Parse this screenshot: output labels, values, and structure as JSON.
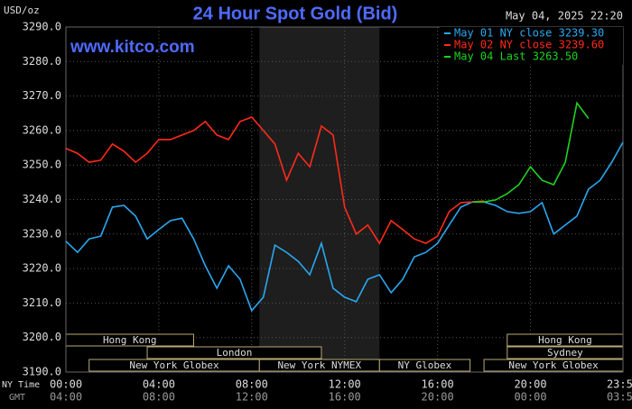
{
  "chart_data": {
    "type": "line",
    "title": "24 Hour Spot Gold (Bid)",
    "y_unit": "USD/oz",
    "date": "May 04, 2025 22:20",
    "watermark": "www.kitco.com",
    "x_label": "NY Time",
    "x2_label": "GMT",
    "x": [
      0,
      0.5,
      1,
      1.5,
      2,
      2.5,
      3,
      3.5,
      4,
      4.5,
      5,
      5.5,
      6,
      6.5,
      7,
      7.5,
      8,
      8.5,
      9,
      9.5,
      10,
      10.5,
      11,
      11.5,
      12,
      12.5,
      13,
      13.5,
      14,
      14.5,
      15,
      15.5,
      16,
      16.5,
      17,
      17.5,
      18,
      18.5,
      19,
      19.5,
      20,
      20.5,
      21,
      21.5,
      22,
      22.5,
      23,
      23.5,
      23.983
    ],
    "xlim": [
      0,
      23.983
    ],
    "xticks": [
      {
        "value": 0,
        "label": "00:00"
      },
      {
        "value": 4,
        "label": "04:00"
      },
      {
        "value": 8,
        "label": "08:00"
      },
      {
        "value": 12,
        "label": "12:00"
      },
      {
        "value": 16,
        "label": "16:00"
      },
      {
        "value": 20,
        "label": "20:00"
      },
      {
        "value": 23.983,
        "label": "23:59"
      }
    ],
    "x2ticks": [
      {
        "value": 0,
        "label": "04:00"
      },
      {
        "value": 4,
        "label": "08:00"
      },
      {
        "value": 8,
        "label": "12:00"
      },
      {
        "value": 12,
        "label": "16:00"
      },
      {
        "value": 16,
        "label": "20:00"
      },
      {
        "value": 20,
        "label": "00:00"
      },
      {
        "value": 23.983,
        "label": "03:59"
      }
    ],
    "ylim": [
      3190,
      3290
    ],
    "yticks": [
      {
        "value": 3190,
        "label": "3190.0"
      },
      {
        "value": 3200,
        "label": "3200.0"
      },
      {
        "value": 3210,
        "label": "3210.0"
      },
      {
        "value": 3220,
        "label": "3220.0"
      },
      {
        "value": 3230,
        "label": "3230.0"
      },
      {
        "value": 3240,
        "label": "3240.0"
      },
      {
        "value": 3250,
        "label": "3250.0"
      },
      {
        "value": 3260,
        "label": "3260.0"
      },
      {
        "value": 3270,
        "label": "3270.0"
      },
      {
        "value": 3280,
        "label": "3280.0"
      },
      {
        "value": 3290,
        "label": "3290.0"
      }
    ],
    "grid": true,
    "shaded_range": [
      8.33,
      13.5
    ],
    "sessions": [
      [
        {
          "label": "Hong Kong",
          "start": 0,
          "end": 5.5
        },
        {
          "label": "Hong Kong",
          "start": 19,
          "end": 23.983
        }
      ],
      [
        {
          "label": "London",
          "start": 3.5,
          "end": 11
        },
        {
          "label": "Sydney",
          "start": 19,
          "end": 23.983
        }
      ],
      [
        {
          "label": "New York Globex",
          "start": 1,
          "end": 8.33
        },
        {
          "label": "New York NYMEX",
          "start": 8.33,
          "end": 13.5
        },
        {
          "label": "NY Globex",
          "start": 13.5,
          "end": 17.4
        },
        {
          "label": "New York Globex",
          "start": 18,
          "end": 23.983
        }
      ]
    ],
    "series": [
      {
        "name": "May 01 NY close 3239.30",
        "color": "#2aa8f0",
        "values": [
          3227.9,
          3224.7,
          3228.6,
          3229.4,
          3237.8,
          3238.3,
          3235.2,
          3228.6,
          3231.3,
          3233.9,
          3234.6,
          3228.6,
          3220.8,
          3214.3,
          3220.8,
          3216.9,
          3207.8,
          3211.7,
          3226.8,
          3224.7,
          3222.1,
          3218.2,
          3227.3,
          3214.3,
          3211.7,
          3210.4,
          3216.9,
          3218.2,
          3213.0,
          3216.9,
          3223.4,
          3224.7,
          3227.3,
          3232.6,
          3237.8,
          3239.3,
          3239.3,
          3238.3,
          3236.5,
          3236.0,
          3236.5,
          3239.1,
          3230.0,
          3232.6,
          3235.2,
          3243.0,
          3245.6,
          3250.8,
          3256.6
        ]
      },
      {
        "name": "May 02 NY close 3239.60",
        "color": "#ff2a1a",
        "values": [
          3254.8,
          3253.4,
          3250.8,
          3251.4,
          3256.1,
          3254.0,
          3250.8,
          3253.4,
          3257.4,
          3257.4,
          3258.7,
          3260.0,
          3262.6,
          3258.7,
          3257.4,
          3262.6,
          3263.9,
          3260.0,
          3256.1,
          3245.6,
          3253.4,
          3249.5,
          3261.3,
          3258.7,
          3237.8,
          3230.0,
          3232.6,
          3227.3,
          3233.9,
          3231.3,
          3228.6,
          3227.3,
          3229.4,
          3236.5,
          3239.1,
          3239.3,
          3239.6,
          null,
          null,
          null,
          null,
          null,
          null,
          null,
          null,
          null,
          null,
          null,
          null
        ]
      },
      {
        "name": "May 04 Last 3263.50",
        "color": "#1ed41e",
        "values": [
          null,
          null,
          null,
          null,
          null,
          null,
          null,
          null,
          null,
          null,
          null,
          null,
          null,
          null,
          null,
          null,
          null,
          null,
          null,
          null,
          null,
          null,
          null,
          null,
          null,
          null,
          null,
          null,
          null,
          null,
          null,
          null,
          null,
          null,
          null,
          3239.3,
          3239.3,
          3239.9,
          3241.7,
          3244.3,
          3249.5,
          3245.6,
          3244.3,
          3250.8,
          3268.0,
          3263.5,
          null,
          null,
          null
        ]
      }
    ]
  }
}
